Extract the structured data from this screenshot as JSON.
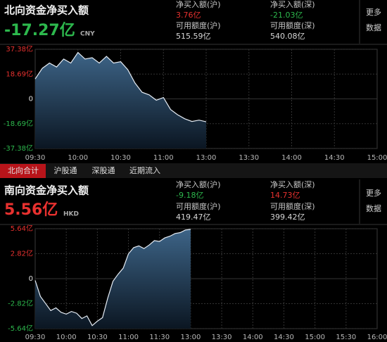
{
  "north": {
    "title": "北向资金净买入额",
    "net": {
      "text": "-17.27亿",
      "color": "#2db84d"
    },
    "currency": "CNY",
    "stats": [
      {
        "label": "净买入额(沪)",
        "value": {
          "text": "3.76亿",
          "color": "#e8312f"
        }
      },
      {
        "label": "净买入额(深)",
        "value": {
          "text": "-21.03亿",
          "color": "#2db84d"
        }
      },
      {
        "label": "可用额度(沪)",
        "value": {
          "text": "515.59亿",
          "color": "#d8d8d8"
        }
      },
      {
        "label": "可用额度(深)",
        "value": {
          "text": "540.08亿",
          "color": "#d8d8d8"
        }
      }
    ],
    "more": [
      "更多",
      "数据"
    ]
  },
  "tabs": [
    {
      "label": "北向合计",
      "active": true
    },
    {
      "label": "沪股通",
      "active": false
    },
    {
      "label": "深股通",
      "active": false
    },
    {
      "label": "近期流入",
      "active": false
    }
  ],
  "south": {
    "title": "南向资金净买入额",
    "net": {
      "text": "5.56亿",
      "color": "#e8312f"
    },
    "currency": "HKD",
    "stats": [
      {
        "label": "净买入额(沪)",
        "value": {
          "text": "-9.18亿",
          "color": "#2db84d"
        }
      },
      {
        "label": "净买入额(深)",
        "value": {
          "text": "14.73亿",
          "color": "#e8312f"
        }
      },
      {
        "label": "可用额度(沪)",
        "value": {
          "text": "419.47亿",
          "color": "#d8d8d8"
        }
      },
      {
        "label": "可用额度(深)",
        "value": {
          "text": "399.42亿",
          "color": "#d8d8d8"
        }
      }
    ],
    "more": [
      "更多",
      "数据"
    ]
  },
  "chart_data": [
    {
      "type": "line",
      "x": [
        "09:30",
        "09:35",
        "09:40",
        "09:45",
        "09:50",
        "09:55",
        "10:00",
        "10:05",
        "10:10",
        "10:15",
        "10:20",
        "10:25",
        "10:30",
        "10:35",
        "10:40",
        "10:45",
        "10:50",
        "10:55",
        "11:00",
        "11:05",
        "11:10",
        "11:15",
        "11:20",
        "11:25",
        "11:30"
      ],
      "series": [
        {
          "color": "#e6edf5",
          "values": [
            15,
            23,
            27,
            24,
            30,
            27,
            35,
            30,
            31,
            27,
            32,
            27,
            28,
            22,
            12,
            5,
            3,
            -1,
            1,
            -8,
            -12,
            -15,
            -17,
            -16,
            -17.27
          ]
        }
      ],
      "ylim": [
        -37.38,
        37.38
      ],
      "yticks": [
        {
          "value": 37.38,
          "label": "37.38亿"
        },
        {
          "value": 18.69,
          "label": "18.69亿"
        },
        0,
        {
          "value": -18.69,
          "label": "-18.69亿"
        },
        {
          "value": -37.38,
          "label": "-37.38亿"
        }
      ],
      "xticks": [
        "09:30",
        "10:00",
        "10:30",
        "11:00",
        "13:00",
        "13:30",
        "14:00",
        "14:30",
        "15:00"
      ],
      "grid": true,
      "up_color": "#e8312f",
      "down_color": "#2db84d"
    },
    {
      "type": "line",
      "x": [
        "09:30",
        "09:35",
        "09:40",
        "09:45",
        "09:50",
        "09:55",
        "10:00",
        "10:05",
        "10:10",
        "10:15",
        "10:20",
        "10:25",
        "10:30",
        "10:35",
        "10:40",
        "10:45",
        "10:50",
        "10:55",
        "11:00",
        "11:05",
        "11:10",
        "11:15",
        "11:20",
        "11:25",
        "11:30",
        "11:35",
        "11:40",
        "11:45",
        "11:50",
        "11:55",
        "12:00"
      ],
      "series": [
        {
          "color": "#e6edf5",
          "values": [
            -0.2,
            -2.0,
            -2.8,
            -3.6,
            -3.3,
            -3.8,
            -4.0,
            -3.7,
            -3.9,
            -4.5,
            -4.2,
            -5.3,
            -4.8,
            -4.4,
            -2.2,
            -0.3,
            0.5,
            1.2,
            2.8,
            3.5,
            3.7,
            3.4,
            3.8,
            4.3,
            4.2,
            4.6,
            4.8,
            5.1,
            5.2,
            5.5,
            5.56
          ]
        }
      ],
      "ylim": [
        -5.64,
        5.64
      ],
      "yticks": [
        {
          "value": 5.64,
          "label": "5.64亿"
        },
        {
          "value": 2.82,
          "label": "2.82亿"
        },
        0,
        {
          "value": -2.82,
          "label": "-2.82亿"
        },
        {
          "value": -5.64,
          "label": "-5.64亿"
        }
      ],
      "xticks": [
        "09:30",
        "10:00",
        "10:30",
        "11:00",
        "11:30",
        "13:00",
        "13:30",
        "14:00",
        "14:30",
        "15:00",
        "15:30",
        "16:00"
      ],
      "grid": true,
      "up_color": "#e8312f",
      "down_color": "#2db84d"
    }
  ]
}
